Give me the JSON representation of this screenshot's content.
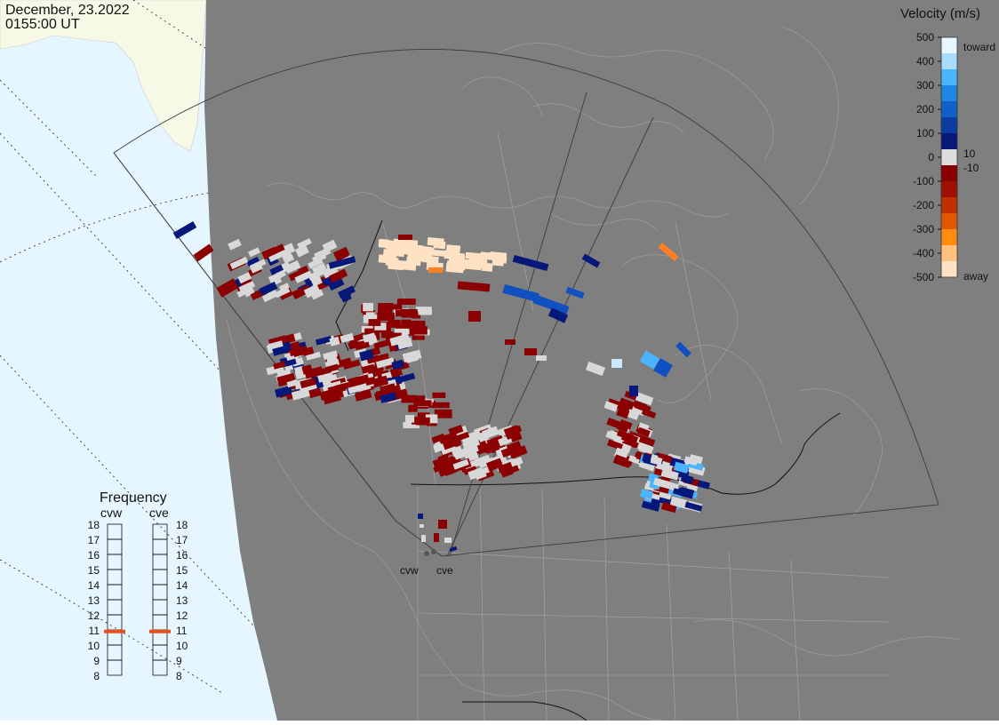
{
  "header": {
    "date": "December, 23.2022",
    "time": "0155:00 UT"
  },
  "legend": {
    "title": "Velocity (m/s)",
    "ticks": [
      "500",
      "400",
      "300",
      "200",
      "100",
      "0",
      "-100",
      "-200",
      "-300",
      "-400",
      "-500"
    ],
    "toward_label": "toward",
    "away_label": "away",
    "plus_threshold": "10",
    "minus_threshold": "-10",
    "colors": [
      "#e8f6ff",
      "#aadcff",
      "#4ab4ff",
      "#1e88e0",
      "#1060c8",
      "#0a3ca0",
      "#06187a",
      "#dddddd",
      "#8a0000",
      "#a01000",
      "#c03000",
      "#e05800",
      "#ff8c10",
      "#ffc080",
      "#ffe2c4"
    ]
  },
  "frequency": {
    "title": "Frequency",
    "radars": [
      "cvw",
      "cve"
    ],
    "scale": [
      "18",
      "17",
      "16",
      "15",
      "14",
      "13",
      "12",
      "11",
      "10",
      "9",
      "8"
    ],
    "selected_mhz": [
      10.9,
      10.9
    ],
    "marker_color": "#e85020"
  },
  "map": {
    "ocean_color": "#e6f6ff",
    "land_color": "#f8f8e6",
    "night_color": "#7f7f7f",
    "radar_sites": [
      "cvw",
      "cve"
    ]
  }
}
